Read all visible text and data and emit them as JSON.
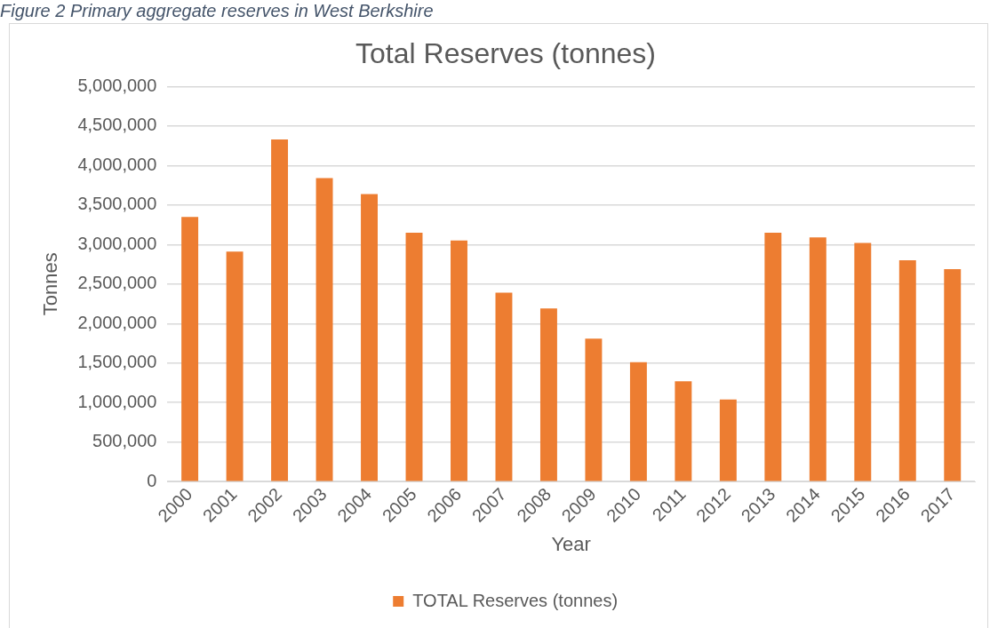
{
  "chart_data": {
    "type": "bar",
    "title": "Total Reserves (tonnes)",
    "xlabel": "Year",
    "ylabel": "Tonnes",
    "annotations": [
      "Figure 2 Primary aggregate reserves in West Berkshire"
    ],
    "categories": [
      "2000",
      "2001",
      "2002",
      "2003",
      "2004",
      "2005",
      "2006",
      "2007",
      "2008",
      "2009",
      "2010",
      "2011",
      "2012",
      "2013",
      "2014",
      "2015",
      "2016",
      "2017"
    ],
    "series": [
      {
        "name": "TOTAL Reserves (tonnes)",
        "color": "#ed7d31",
        "values": [
          3350000,
          2910000,
          4330000,
          3840000,
          3640000,
          3150000,
          3050000,
          2390000,
          2190000,
          1810000,
          1510000,
          1270000,
          1040000,
          3150000,
          3090000,
          3020000,
          2800000,
          2690000
        ]
      }
    ],
    "ylim": [
      0,
      5000000
    ],
    "yticks": [
      0,
      {
        "value": 500000,
        "label": "500,000"
      },
      {
        "value": 1000000,
        "label": "1,000,000"
      },
      {
        "value": 1500000,
        "label": "1,500,000"
      },
      {
        "value": 2000000,
        "label": "2,000,000"
      },
      {
        "value": 2500000,
        "label": "2,500,000"
      },
      {
        "value": 3000000,
        "label": "3,000,000"
      },
      {
        "value": 3500000,
        "label": "3,500,000"
      },
      {
        "value": 4000000,
        "label": "4,000,000"
      },
      {
        "value": 4500000,
        "label": "4,500,000"
      },
      {
        "value": 5000000,
        "label": "5,000,000"
      }
    ],
    "grid": "y",
    "legend": "bottom"
  }
}
